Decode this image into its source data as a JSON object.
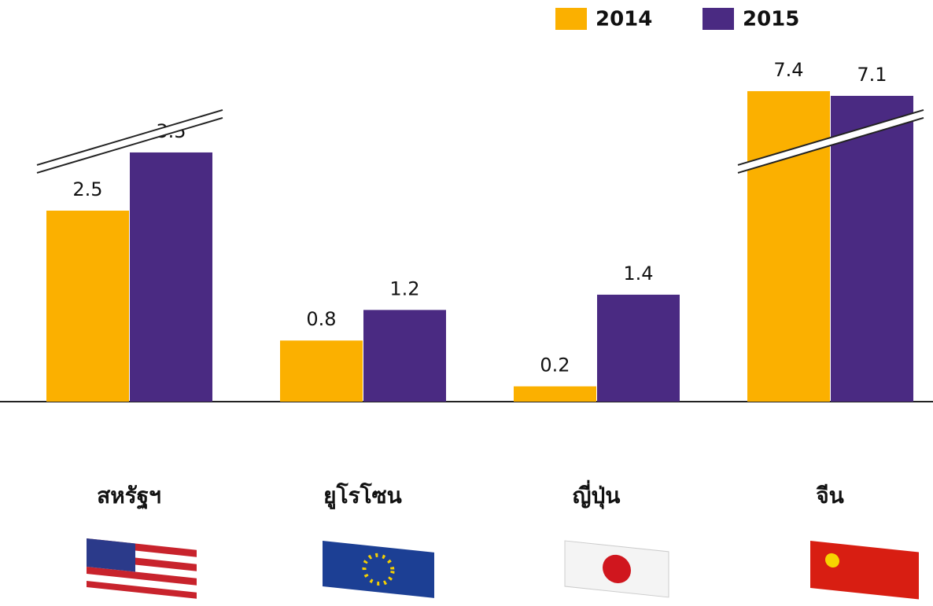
{
  "chart_data": {
    "type": "bar",
    "categories": [
      "สหรัฐฯ",
      "ยูโรโซน",
      "ญี่ปุ่น",
      "จีน"
    ],
    "series": [
      {
        "name": "2014",
        "color": "#fbb000",
        "values": [
          2.5,
          0.8,
          0.2,
          7.4
        ]
      },
      {
        "name": "2015",
        "color": "#4a2a82",
        "values": [
          3.5,
          1.2,
          1.4,
          7.1
        ]
      }
    ],
    "legend": "top-right"
  }
}
